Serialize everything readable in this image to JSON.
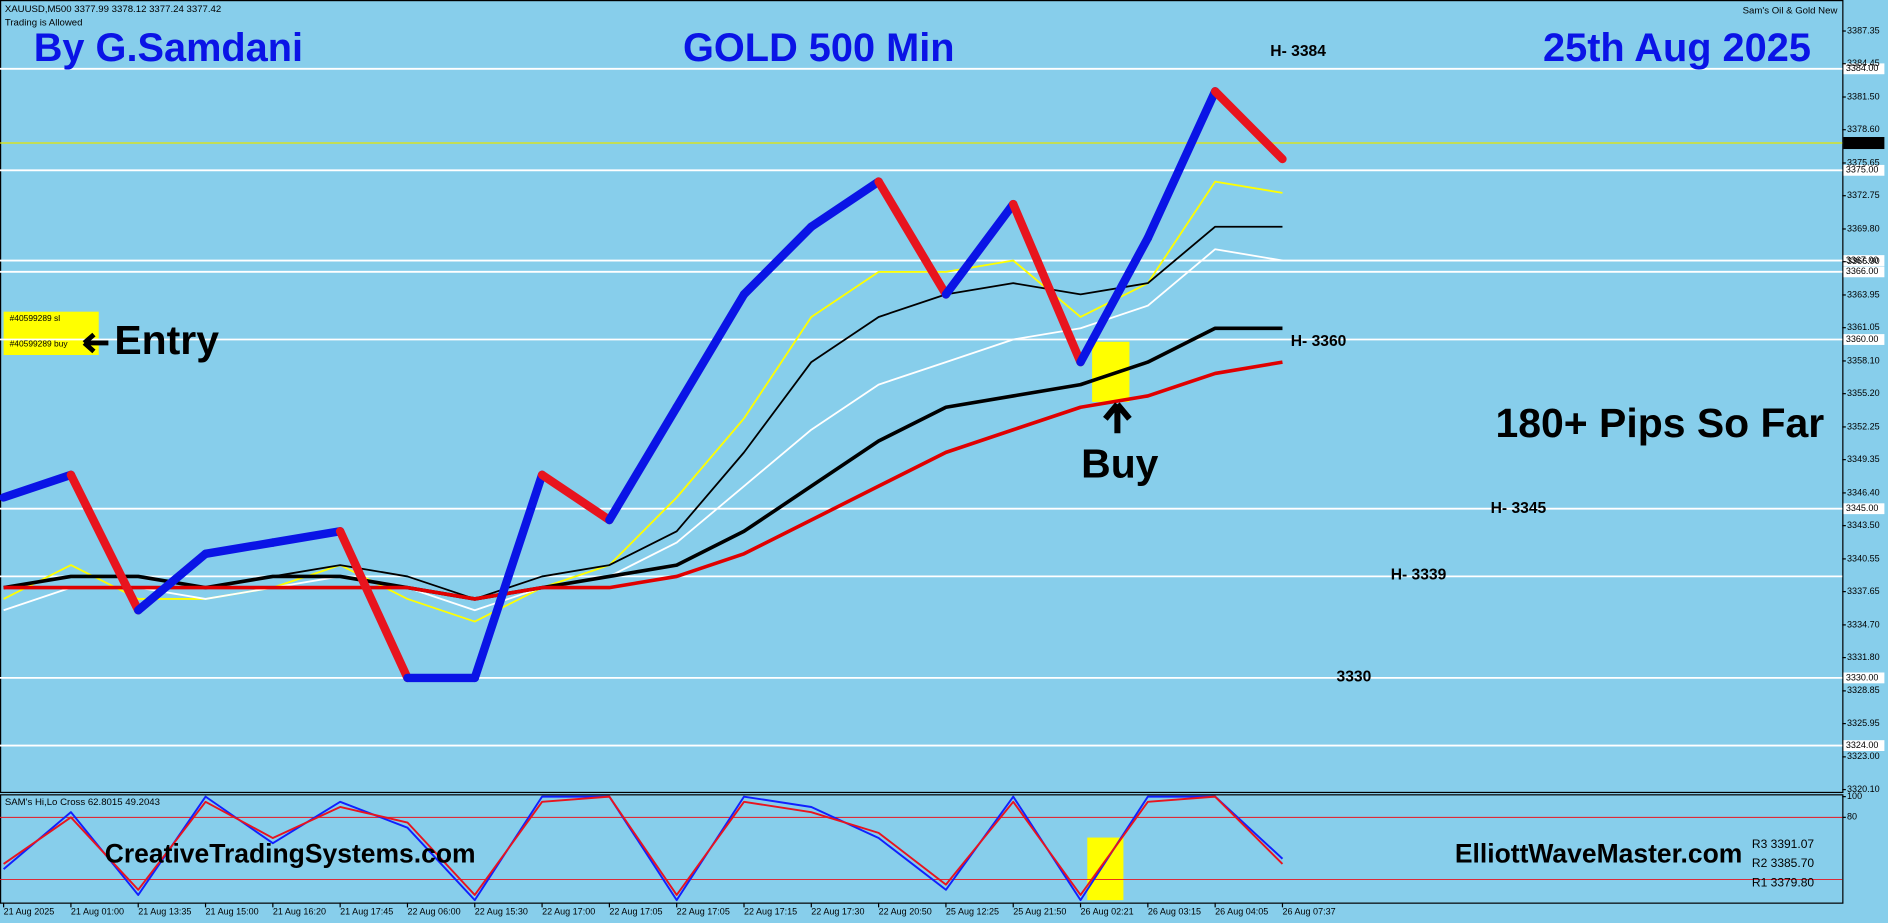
{
  "chart_data": [
    {
      "type": "line",
      "symbol": "XAUUSD,M500  3377.99 3378.12 3377.24 3377.42",
      "status": "Trading is Allowed",
      "indicator": "Sam's Oil & Gold New",
      "author": "By G.Samdani",
      "title": "GOLD 500 Min",
      "date": "25th Aug 2025",
      "order_sl": "#40599289 sl",
      "order_buy": "#40599289 buy",
      "entry_text": "Entry",
      "buy_text": "Buy",
      "pips_text": "180+ Pips So Far",
      "website_left": "CreativeTradingSystems.com",
      "categories": [
        "21 Aug 2025",
        "21 Aug 01:00",
        "21 Aug 13:35",
        "21 Aug 15:00",
        "21 Aug 16:20",
        "21 Aug 17:45",
        "22 Aug 06:00",
        "22 Aug 15:30",
        "22 Aug 17:00",
        "22 Aug 17:05",
        "22 Aug 17:05",
        "22 Aug 17:15",
        "22 Aug 17:30",
        "22 Aug 20:50",
        "25 Aug 12:25",
        "25 Aug 21:50",
        "26 Aug 02:21",
        "26 Aug 03:15",
        "26 Aug 04:05",
        "26 Aug 07:37"
      ],
      "series": [
        {
          "color": "#ffff00",
          "values": [
            3337,
            3340,
            3337,
            3337,
            3338,
            3340,
            3337,
            3335,
            3338,
            3340,
            3346,
            3353,
            3362,
            3366,
            3366,
            3367,
            3362,
            3365,
            3374,
            3373
          ]
        },
        {
          "color": "#ffffff",
          "values": [
            3336,
            3338,
            3338,
            3337,
            3338,
            3339,
            3338,
            3336,
            3338,
            3339,
            3342,
            3347,
            3352,
            3356,
            3358,
            3360,
            3361,
            3363,
            3368,
            3367
          ]
        },
        {
          "color": "#000000",
          "values": [
            3338,
            3339,
            3339,
            3338,
            3339,
            3340,
            3339,
            3337,
            3339,
            3340,
            3343,
            3350,
            3358,
            3362,
            3364,
            3365,
            3364,
            3365,
            3370,
            3370
          ]
        },
        {
          "color": "#000000",
          "values": [
            3338,
            3339,
            3339,
            3338,
            3339,
            3339,
            3338,
            3337,
            3338,
            3339,
            3340,
            3343,
            3347,
            3351,
            3354,
            3355,
            3356,
            3358,
            3361,
            3361
          ]
        },
        {
          "color": "#e00000",
          "values": [
            3338,
            3338,
            3338,
            3338,
            3338,
            3338,
            3338,
            3337,
            3338,
            3338,
            3339,
            3341,
            3344,
            3347,
            3350,
            3352,
            3354,
            3355,
            3357,
            3358
          ]
        }
      ],
      "price": {
        "up_color": "#0a14e6",
        "down_color": "#e8141e",
        "values": [
          3346,
          3348,
          3336,
          3341,
          3342,
          3343,
          3330,
          3330,
          3348,
          3344,
          3354,
          3364,
          3370,
          3374,
          3364,
          3372,
          3358,
          3369,
          3382,
          3376
        ]
      },
      "ylim": [
        3319.9,
        3390.1
      ],
      "yticks": [
        {
          "value": 3320.1,
          "label": "3320.10"
        },
        {
          "value": 3323,
          "label": "3323.00"
        },
        3325.95,
        3328.85,
        {
          "value": 3331.8,
          "label": "3331.80"
        },
        {
          "value": 3334.7,
          "label": "3334.70"
        },
        3337.65,
        3340.55,
        {
          "value": 3343.5,
          "label": "3343.50"
        },
        {
          "value": 3346.4,
          "label": "3346.40"
        },
        3349.35,
        3352.25,
        {
          "value": 3355.2,
          "label": "3355.20"
        },
        {
          "value": 3358.1,
          "label": "3358.10"
        },
        3361.05,
        3363.95,
        {
          "value": 3366.9,
          "label": "3366.90"
        },
        {
          "value": 3369.8,
          "label": "3369.80"
        },
        3372.75,
        3375.65,
        {
          "value": 3378.6,
          "label": "3378.60"
        },
        {
          "value": 3381.5,
          "label": "3381.50"
        },
        3384.45,
        3387.35
      ],
      "levels": [
        {
          "value": 3384,
          "label": "3384.00"
        },
        {
          "value": 3375,
          "label": "3375.00"
        },
        {
          "value": 3367,
          "label": "3367.00"
        },
        {
          "value": 3366,
          "label": "3366.00"
        },
        {
          "value": 3360,
          "label": "3360.00"
        },
        {
          "value": 3345,
          "label": "3345.00"
        },
        3339,
        {
          "value": 3330,
          "label": "3330.00"
        },
        {
          "value": 3324,
          "label": "3324.00"
        }
      ],
      "current_price": 3377.42,
      "annotations": [
        "H- 3384",
        "H- 3360",
        "H- 3345",
        "H- 3339",
        "3330"
      ]
    },
    {
      "type": "line",
      "label": "SAM's Hi,Lo Cross 62.8015 49.2043",
      "website_right": "ElliottWaveMaster.com",
      "ylim": [
        0,
        100
      ],
      "yticks": [
        80,
        100
      ],
      "series": [
        {
          "color": "#1020ff",
          "values": [
            30,
            85,
            5,
            100,
            55,
            95,
            70,
            0,
            100,
            100,
            0,
            100,
            90,
            60,
            10,
            100,
            0,
            100,
            100,
            40
          ]
        },
        {
          "color": "#e8141e",
          "values": [
            35,
            80,
            10,
            95,
            60,
            90,
            75,
            5,
            95,
            100,
            5,
            95,
            85,
            65,
            15,
            95,
            5,
            95,
            100,
            35
          ]
        }
      ],
      "pivot_labels": [
        "R3 3391.07",
        "R2 3385.70",
        "R1 3379.80"
      ]
    }
  ]
}
